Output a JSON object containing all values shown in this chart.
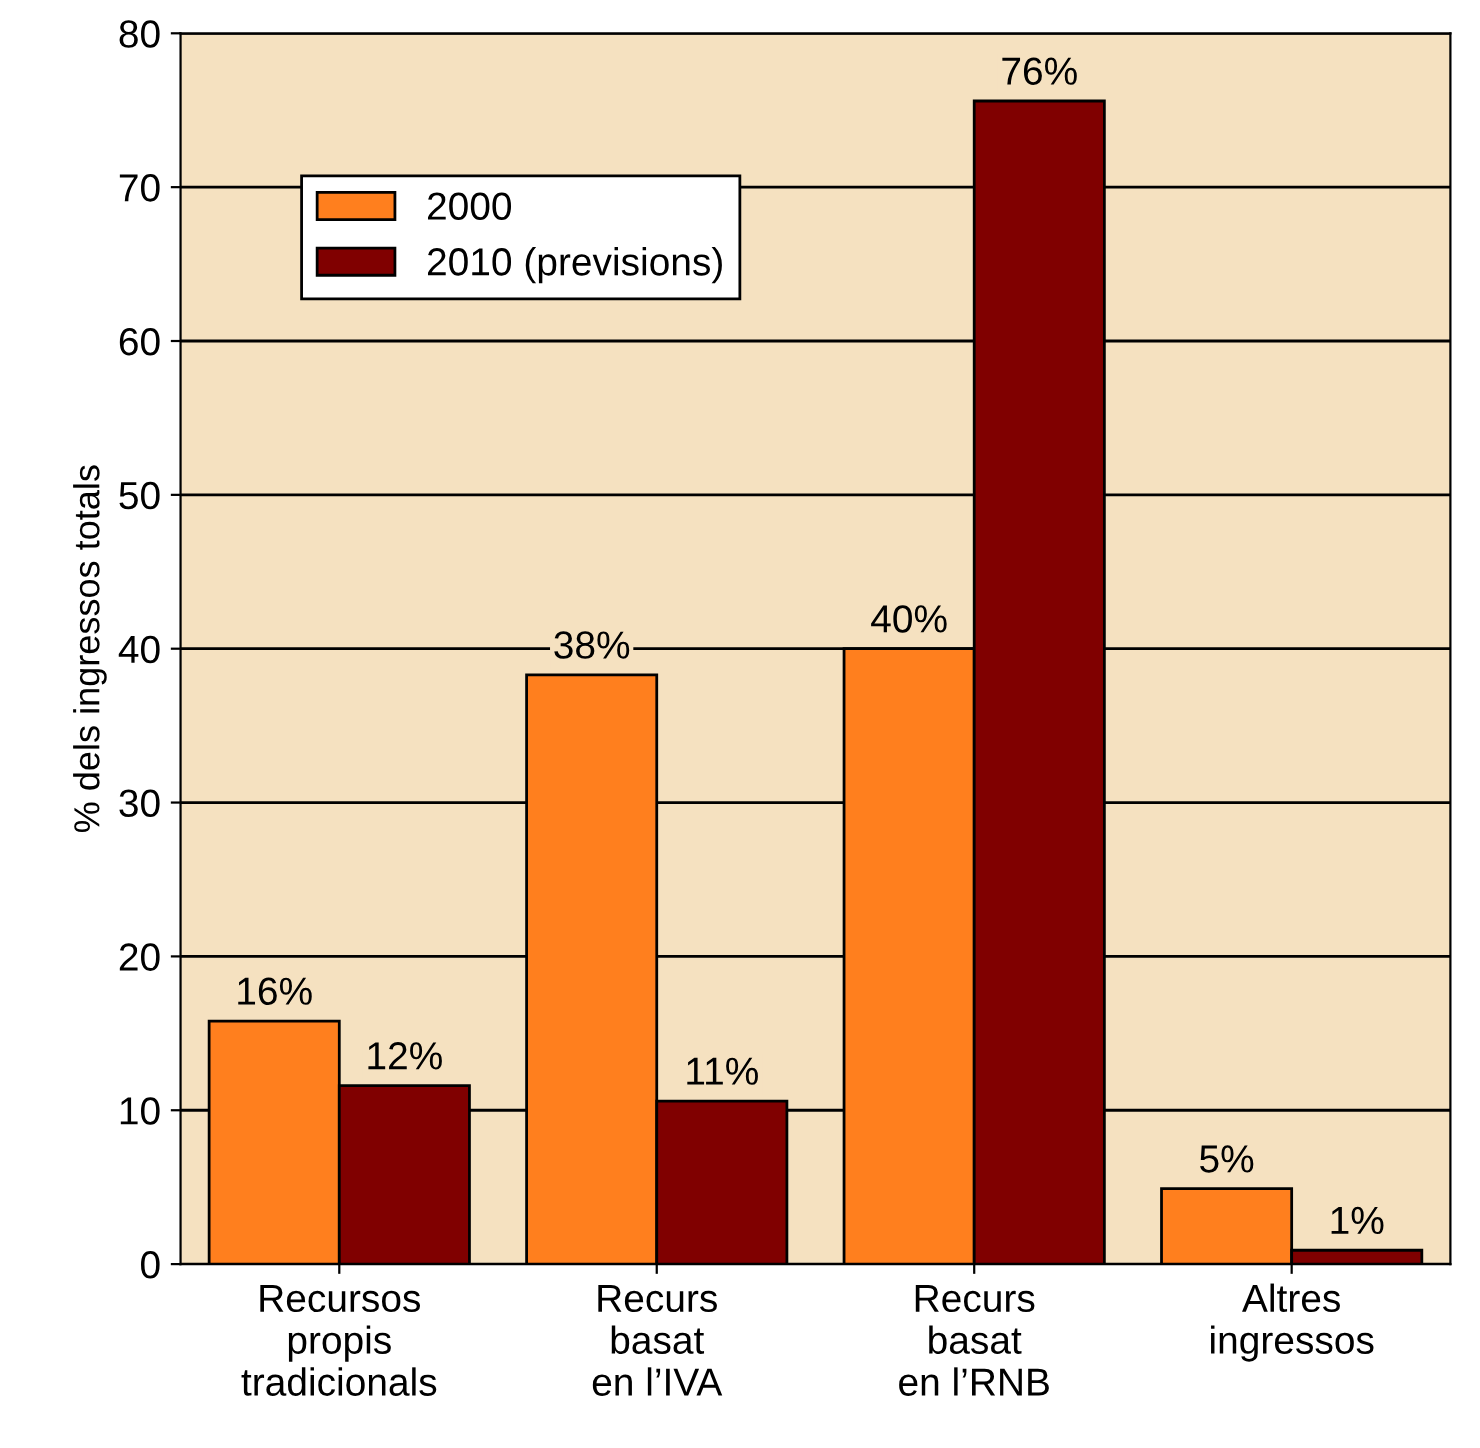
{
  "chart_data": {
    "type": "bar",
    "ylabel": "% dels ingressos totals",
    "categories": [
      "Recursos\npropis\ntradicionals",
      "Recurs\nbasat\nen l’IVA",
      "Recurs\nbasat\nen l’RNB",
      "Altres\ningressos"
    ],
    "series": [
      {
        "name": "2000",
        "color": "#ff7f1e",
        "values": [
          15.8,
          38.3,
          40.0,
          4.9
        ],
        "value_labels": [
          "16%",
          "38%",
          "40%",
          "5%"
        ]
      },
      {
        "name": "2010 (previsions)",
        "color": "#800000",
        "values": [
          11.6,
          10.6,
          75.6,
          0.9
        ],
        "value_labels": [
          "12%",
          "11%",
          "76%",
          "1%"
        ]
      }
    ],
    "ylim": [
      0,
      80
    ],
    "yticks": [
      0,
      10,
      20,
      30,
      40,
      50,
      60,
      70,
      80
    ],
    "grid": "y",
    "legend": "top left"
  }
}
